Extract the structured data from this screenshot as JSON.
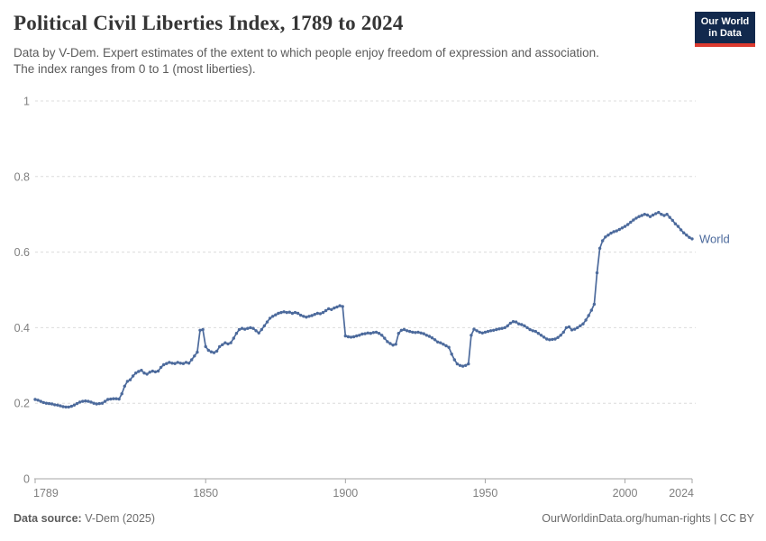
{
  "header": {
    "title": "Political Civil Liberties Index, 1789 to 2024",
    "subtitle_line1": "Data by V-Dem. Expert estimates of the extent to which people enjoy freedom of expression and association.",
    "subtitle_line2": "The index ranges from 0 to 1 (most liberties).",
    "logo": {
      "line1": "Our World",
      "line2": "in Data"
    }
  },
  "chart_data": {
    "type": "line",
    "title": "Political Civil Liberties Index, 1789 to 2024",
    "xlabel": "",
    "ylabel": "",
    "xlim": [
      1789,
      2024
    ],
    "ylim": [
      0,
      1
    ],
    "x_ticks": [
      1789,
      1850,
      1900,
      1950,
      2000,
      2024
    ],
    "y_ticks": [
      0,
      0.2,
      0.4,
      0.6,
      0.8,
      1
    ],
    "y_tick_labels": [
      "0",
      "0.2",
      "0.4",
      "0.6",
      "0.8",
      "1"
    ],
    "grid": "horizontal-dashed",
    "legend_position": "end-of-line-label",
    "end_label": "World",
    "series": [
      {
        "name": "World",
        "color": "#4C6A9C",
        "x_start": 1789,
        "x_step": 1,
        "values": [
          0.21,
          0.208,
          0.205,
          0.202,
          0.2,
          0.199,
          0.198,
          0.196,
          0.195,
          0.193,
          0.191,
          0.19,
          0.19,
          0.192,
          0.195,
          0.199,
          0.203,
          0.205,
          0.206,
          0.205,
          0.203,
          0.2,
          0.198,
          0.199,
          0.2,
          0.205,
          0.21,
          0.211,
          0.212,
          0.212,
          0.211,
          0.225,
          0.245,
          0.258,
          0.262,
          0.272,
          0.28,
          0.284,
          0.287,
          0.28,
          0.277,
          0.282,
          0.285,
          0.283,
          0.285,
          0.295,
          0.302,
          0.305,
          0.308,
          0.306,
          0.305,
          0.308,
          0.306,
          0.305,
          0.308,
          0.306,
          0.315,
          0.325,
          0.335,
          0.393,
          0.395,
          0.35,
          0.34,
          0.336,
          0.334,
          0.338,
          0.35,
          0.355,
          0.36,
          0.357,
          0.36,
          0.372,
          0.385,
          0.395,
          0.398,
          0.396,
          0.398,
          0.4,
          0.398,
          0.392,
          0.386,
          0.395,
          0.405,
          0.415,
          0.425,
          0.43,
          0.434,
          0.438,
          0.44,
          0.442,
          0.44,
          0.441,
          0.438,
          0.44,
          0.438,
          0.433,
          0.43,
          0.428,
          0.43,
          0.432,
          0.435,
          0.438,
          0.437,
          0.44,
          0.445,
          0.45,
          0.448,
          0.452,
          0.455,
          0.458,
          0.456,
          0.378,
          0.376,
          0.375,
          0.376,
          0.378,
          0.38,
          0.383,
          0.384,
          0.386,
          0.385,
          0.387,
          0.388,
          0.385,
          0.38,
          0.372,
          0.363,
          0.358,
          0.354,
          0.356,
          0.385,
          0.393,
          0.395,
          0.392,
          0.39,
          0.388,
          0.387,
          0.388,
          0.386,
          0.384,
          0.38,
          0.377,
          0.373,
          0.368,
          0.362,
          0.36,
          0.356,
          0.352,
          0.348,
          0.33,
          0.315,
          0.304,
          0.3,
          0.298,
          0.3,
          0.304,
          0.38,
          0.396,
          0.392,
          0.388,
          0.386,
          0.388,
          0.39,
          0.392,
          0.393,
          0.395,
          0.397,
          0.398,
          0.4,
          0.405,
          0.412,
          0.416,
          0.415,
          0.41,
          0.408,
          0.405,
          0.4,
          0.395,
          0.392,
          0.39,
          0.385,
          0.38,
          0.375,
          0.37,
          0.368,
          0.369,
          0.37,
          0.374,
          0.38,
          0.388,
          0.4,
          0.402,
          0.394,
          0.396,
          0.4,
          0.405,
          0.41,
          0.42,
          0.432,
          0.446,
          0.462,
          0.545,
          0.61,
          0.63,
          0.64,
          0.645,
          0.65,
          0.654,
          0.656,
          0.66,
          0.664,
          0.668,
          0.673,
          0.679,
          0.685,
          0.69,
          0.694,
          0.697,
          0.7,
          0.698,
          0.694,
          0.698,
          0.702,
          0.705,
          0.7,
          0.697,
          0.7,
          0.692,
          0.684,
          0.675,
          0.668,
          0.659,
          0.651,
          0.645,
          0.639,
          0.635
        ]
      }
    ]
  },
  "footer": {
    "source_label": "Data source:",
    "source_value": " V-Dem (2025)",
    "credit": "OurWorldinData.org/human-rights | CC BY"
  },
  "colors": {
    "line": "#4C6A9C",
    "grid": "#dcdcdc",
    "axis": "#a5a5a5",
    "tick_text": "#808080",
    "logo_bg": "#12294d",
    "logo_accent": "#dc3a2f"
  }
}
